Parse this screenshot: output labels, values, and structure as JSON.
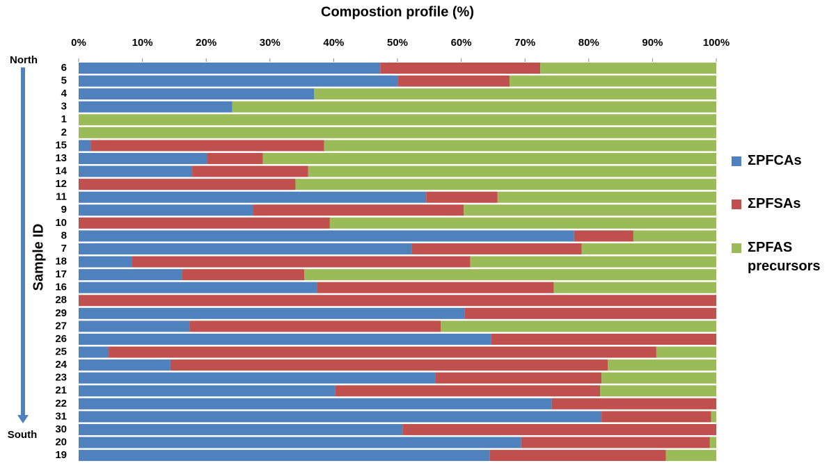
{
  "chart_data": {
    "type": "stacked-bar-horizontal",
    "title": "Compostion profile (%)",
    "y_label": "Sample ID",
    "annotations": [
      "North",
      "South"
    ],
    "categories": [
      "6",
      "5",
      "4",
      "3",
      "1",
      "2",
      "15",
      "13",
      "14",
      "12",
      "11",
      "9",
      "10",
      "8",
      "7",
      "18",
      "17",
      "16",
      "28",
      "29",
      "27",
      "26",
      "25",
      "24",
      "23",
      "21",
      "22",
      "31",
      "30",
      "20",
      "19"
    ],
    "series": [
      {
        "name": "ΣPFCAs",
        "color": "#4f81bd",
        "values": [
          47.3,
          50.1,
          36.9,
          24.1,
          0,
          0,
          1.9,
          20.2,
          17.8,
          0,
          54.5,
          27.3,
          0,
          77.7,
          52.2,
          8.4,
          16.2,
          37.4,
          0,
          60.5,
          17.4,
          64.7,
          4.7,
          14.4,
          56.0,
          40.2,
          74.2,
          82.0,
          50.8,
          69.4,
          64.5
        ]
      },
      {
        "name": "ΣPFSAs",
        "color": "#c0504d",
        "values": [
          25.1,
          17.5,
          0,
          0,
          0,
          0,
          36.6,
          8.7,
          18.2,
          34.0,
          11.2,
          33.1,
          39.4,
          9.3,
          26.7,
          53.0,
          19.2,
          37.1,
          100,
          39.5,
          39.4,
          35.3,
          85.9,
          68.6,
          26.0,
          41.6,
          25.8,
          17.2,
          49.2,
          29.6,
          27.6
        ]
      },
      {
        "name": "ΣPFAS precursors",
        "color": "#9bbb59",
        "values": [
          27.6,
          32.4,
          63.1,
          75.9,
          100,
          100,
          61.5,
          71.1,
          64.0,
          66.0,
          34.3,
          39.6,
          60.6,
          13.0,
          21.1,
          38.6,
          64.6,
          25.5,
          0,
          0,
          43.2,
          0,
          9.4,
          17.0,
          18.0,
          18.2,
          0,
          0.8,
          0,
          1.0,
          7.9
        ]
      }
    ],
    "xlim": [
      0,
      100
    ],
    "xticks": [
      {
        "value": 0,
        "label": "0%"
      },
      {
        "value": 10,
        "label": "10%"
      },
      {
        "value": 20,
        "label": "20%"
      },
      {
        "value": 30,
        "label": "30%"
      },
      {
        "value": 40,
        "label": "40%"
      },
      {
        "value": 50,
        "label": "50%"
      },
      {
        "value": 60,
        "label": "60%"
      },
      {
        "value": 70,
        "label": "70%"
      },
      {
        "value": 80,
        "label": "80%"
      },
      {
        "value": 90,
        "label": "90%"
      },
      {
        "value": 100,
        "label": "100%"
      }
    ],
    "legend_position": "right"
  }
}
